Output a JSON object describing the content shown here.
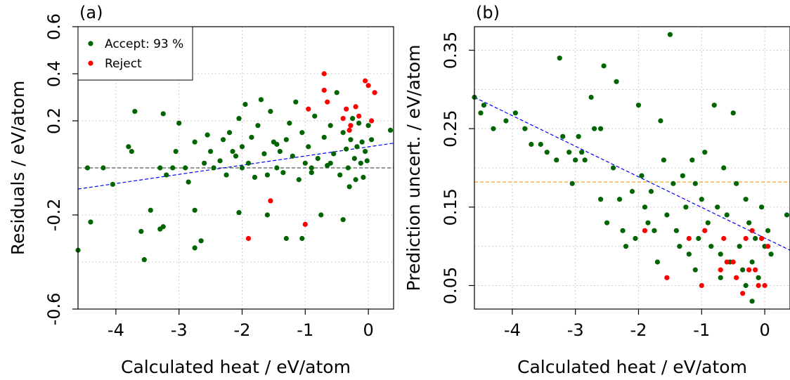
{
  "chart_data": [
    {
      "type": "scatter",
      "panel_tag": "(a)",
      "xlabel": "Calculated heat / eV/atom",
      "ylabel": "Residuals / eV/atom",
      "xlim": [
        -4.6,
        0.4
      ],
      "ylim": [
        -0.6,
        0.6
      ],
      "x_ticks": [
        "-4",
        "-3",
        "-2",
        "-1",
        "0"
      ],
      "y_ticks": [
        "-0.6",
        "-0.2",
        "0.2",
        "0.4",
        "0.6"
      ],
      "y_tick_values": [
        -0.6,
        -0.2,
        0.2,
        0.4,
        0.6
      ],
      "y_grid_values": [
        -0.6,
        -0.4,
        -0.2,
        0,
        0.2,
        0.4,
        0.6
      ],
      "grid": true,
      "legend": {
        "position": "top-left",
        "entries": [
          {
            "label": "Accept: 93 %",
            "color": "#006400"
          },
          {
            "label": "Reject",
            "color": "#ff0000"
          }
        ]
      },
      "reference_lines": [
        {
          "style": "dashed",
          "color": "#555555",
          "from": [
            -4.6,
            0.0
          ],
          "to": [
            0.4,
            0.0
          ]
        },
        {
          "style": "dashed",
          "color": "#0000ff",
          "from": [
            -4.6,
            -0.09
          ],
          "to": [
            0.4,
            0.105
          ]
        }
      ],
      "series": [
        {
          "name": "Accept: 93 %",
          "color": "#006400",
          "points": [
            [
              -4.6,
              -0.35
            ],
            [
              -4.45,
              0.0
            ],
            [
              -4.4,
              -0.23
            ],
            [
              -4.2,
              0.0
            ],
            [
              -4.05,
              -0.07
            ],
            [
              -3.8,
              0.09
            ],
            [
              -3.75,
              0.07
            ],
            [
              -3.7,
              0.24
            ],
            [
              -3.6,
              -0.27
            ],
            [
              -3.55,
              -0.39
            ],
            [
              -3.45,
              -0.18
            ],
            [
              -3.3,
              -0.26
            ],
            [
              -3.25,
              0.23
            ],
            [
              -3.25,
              -0.25
            ],
            [
              -3.2,
              -0.03
            ],
            [
              -3.1,
              0.0
            ],
            [
              -3.05,
              0.07
            ],
            [
              -3.0,
              0.19
            ],
            [
              -2.9,
              0.0
            ],
            [
              -2.85,
              -0.06
            ],
            [
              -2.75,
              0.11
            ],
            [
              -2.75,
              -0.34
            ],
            [
              -2.65,
              -0.31
            ],
            [
              -2.55,
              0.14
            ],
            [
              -2.5,
              0.07
            ],
            [
              -2.45,
              0.0
            ],
            [
              -2.35,
              0.03
            ],
            [
              -2.3,
              0.12
            ],
            [
              -2.25,
              -0.03
            ],
            [
              -2.2,
              0.15
            ],
            [
              -2.15,
              0.07
            ],
            [
              -2.1,
              0.05
            ],
            [
              -2.05,
              0.21
            ],
            [
              -2.0,
              0.09
            ],
            [
              -1.95,
              0.27
            ],
            [
              -1.9,
              0.02
            ],
            [
              -1.85,
              0.13
            ],
            [
              -1.8,
              -0.04
            ],
            [
              -1.75,
              0.18
            ],
            [
              -1.7,
              0.29
            ],
            [
              -1.65,
              0.06
            ],
            [
              -1.6,
              -0.03
            ],
            [
              -1.55,
              0.24
            ],
            [
              -1.5,
              0.11
            ],
            [
              -1.45,
              0.0
            ],
            [
              -1.4,
              0.07
            ],
            [
              -1.35,
              -0.02
            ],
            [
              -1.3,
              0.12
            ],
            [
              -1.25,
              0.19
            ],
            [
              -1.2,
              0.05
            ],
            [
              -1.15,
              0.28
            ],
            [
              -1.1,
              -0.05
            ],
            [
              -1.05,
              0.15
            ],
            [
              -1.0,
              0.02
            ],
            [
              -0.95,
              0.09
            ],
            [
              -0.9,
              -0.02
            ],
            [
              -0.85,
              0.22
            ],
            [
              -0.8,
              0.04
            ],
            [
              -0.75,
              -0.2
            ],
            [
              -0.7,
              0.13
            ],
            [
              -0.65,
              0.01
            ],
            [
              -0.6,
              0.18
            ],
            [
              -0.55,
              0.06
            ],
            [
              -0.5,
              0.32
            ],
            [
              -0.45,
              -0.03
            ],
            [
              -0.4,
              0.15
            ],
            [
              -0.35,
              0.08
            ],
            [
              -0.32,
              0.0
            ],
            [
              -0.3,
              -0.08
            ],
            [
              -0.28,
              0.12
            ],
            [
              -0.25,
              0.21
            ],
            [
              -0.22,
              0.04
            ],
            [
              -0.2,
              -0.05
            ],
            [
              -0.18,
              0.09
            ],
            [
              -0.15,
              0.19
            ],
            [
              -0.12,
              0.02
            ],
            [
              -0.1,
              0.11
            ],
            [
              -0.08,
              -0.04
            ],
            [
              -0.05,
              0.07
            ],
            [
              -0.02,
              0.03
            ],
            [
              0.0,
              0.18
            ],
            [
              0.05,
              0.12
            ],
            [
              0.35,
              0.16
            ],
            [
              -1.6,
              -0.2
            ],
            [
              -1.3,
              -0.3
            ],
            [
              -1.05,
              -0.3
            ],
            [
              -0.4,
              -0.22
            ],
            [
              -2.05,
              -0.19
            ],
            [
              -2.75,
              -0.18
            ],
            [
              -3.3,
              0.0
            ],
            [
              -2.6,
              0.02
            ],
            [
              -2.0,
              0.0
            ],
            [
              -1.45,
              0.1
            ],
            [
              -0.9,
              0.0
            ],
            [
              -0.6,
              0.02
            ]
          ]
        },
        {
          "name": "Reject",
          "color": "#ff0000",
          "points": [
            [
              -1.9,
              -0.3
            ],
            [
              -1.55,
              -0.14
            ],
            [
              -1.0,
              -0.24
            ],
            [
              -0.95,
              0.25
            ],
            [
              -0.7,
              0.4
            ],
            [
              -0.7,
              0.33
            ],
            [
              -0.65,
              0.28
            ],
            [
              -0.4,
              0.21
            ],
            [
              -0.3,
              0.16
            ],
            [
              -0.28,
              0.18
            ],
            [
              -0.2,
              0.26
            ],
            [
              -0.15,
              0.22
            ],
            [
              -0.05,
              0.37
            ],
            [
              0.0,
              0.35
            ],
            [
              0.1,
              0.32
            ],
            [
              -0.35,
              0.25
            ],
            [
              0.05,
              0.2
            ]
          ]
        }
      ]
    },
    {
      "type": "scatter",
      "panel_tag": "(b)",
      "xlabel": "Calculated heat / eV/atom",
      "ylabel": "Prediction uncert. / eV/atom",
      "xlim": [
        -4.6,
        0.4
      ],
      "ylim": [
        0.02,
        0.38
      ],
      "x_ticks": [
        "-4",
        "-3",
        "-2",
        "-1",
        "0"
      ],
      "y_ticks": [
        "0.05",
        "0.15",
        "0.25",
        "0.35"
      ],
      "y_tick_values": [
        0.05,
        0.15,
        0.25,
        0.35
      ],
      "y_grid_values": [
        0.05,
        0.1,
        0.15,
        0.2,
        0.25,
        0.3,
        0.35
      ],
      "grid": true,
      "reference_lines": [
        {
          "style": "dashed",
          "color": "#ffa500",
          "from": [
            -4.6,
            0.182
          ],
          "to": [
            0.4,
            0.182
          ]
        },
        {
          "style": "dashed",
          "color": "#0000ff",
          "from": [
            -4.6,
            0.29
          ],
          "to": [
            0.4,
            0.095
          ]
        }
      ],
      "series": [
        {
          "name": "Accept: 93 %",
          "color": "#006400",
          "points": [
            [
              -4.6,
              0.29
            ],
            [
              -4.5,
              0.27
            ],
            [
              -4.45,
              0.28
            ],
            [
              -4.3,
              0.25
            ],
            [
              -4.1,
              0.26
            ],
            [
              -3.95,
              0.27
            ],
            [
              -3.8,
              0.25
            ],
            [
              -3.7,
              0.23
            ],
            [
              -3.55,
              0.23
            ],
            [
              -3.45,
              0.22
            ],
            [
              -3.3,
              0.21
            ],
            [
              -3.25,
              0.34
            ],
            [
              -3.2,
              0.24
            ],
            [
              -3.1,
              0.22
            ],
            [
              -3.05,
              0.18
            ],
            [
              -2.95,
              0.24
            ],
            [
              -2.9,
              0.22
            ],
            [
              -2.85,
              0.21
            ],
            [
              -2.75,
              0.29
            ],
            [
              -2.7,
              0.25
            ],
            [
              -2.6,
              0.16
            ],
            [
              -2.55,
              0.33
            ],
            [
              -2.5,
              0.13
            ],
            [
              -2.4,
              0.2
            ],
            [
              -2.35,
              0.31
            ],
            [
              -2.3,
              0.16
            ],
            [
              -2.25,
              0.12
            ],
            [
              -2.2,
              0.1
            ],
            [
              -2.1,
              0.17
            ],
            [
              -2.05,
              0.11
            ],
            [
              -2.0,
              0.28
            ],
            [
              -1.95,
              0.19
            ],
            [
              -1.9,
              0.15
            ],
            [
              -1.85,
              0.13
            ],
            [
              -1.8,
              0.17
            ],
            [
              -1.75,
              0.12
            ],
            [
              -1.7,
              0.08
            ],
            [
              -1.65,
              0.26
            ],
            [
              -1.6,
              0.21
            ],
            [
              -1.55,
              0.14
            ],
            [
              -1.5,
              0.37
            ],
            [
              -1.45,
              0.18
            ],
            [
              -1.4,
              0.12
            ],
            [
              -1.35,
              0.1
            ],
            [
              -1.3,
              0.19
            ],
            [
              -1.25,
              0.15
            ],
            [
              -1.2,
              0.09
            ],
            [
              -1.15,
              0.21
            ],
            [
              -1.1,
              0.18
            ],
            [
              -1.05,
              0.11
            ],
            [
              -1.0,
              0.16
            ],
            [
              -0.95,
              0.22
            ],
            [
              -0.9,
              0.13
            ],
            [
              -0.85,
              0.1
            ],
            [
              -0.8,
              0.28
            ],
            [
              -0.75,
              0.15
            ],
            [
              -0.7,
              0.09
            ],
            [
              -0.65,
              0.2
            ],
            [
              -0.6,
              0.14
            ],
            [
              -0.55,
              0.08
            ],
            [
              -0.5,
              0.27
            ],
            [
              -0.45,
              0.18
            ],
            [
              -0.4,
              0.1
            ],
            [
              -0.35,
              0.07
            ],
            [
              -0.3,
              0.16
            ],
            [
              -0.25,
              0.13
            ],
            [
              -0.2,
              0.08
            ],
            [
              -0.15,
              0.11
            ],
            [
              -0.1,
              0.06
            ],
            [
              -0.05,
              0.15
            ],
            [
              0.0,
              0.1
            ],
            [
              0.05,
              0.12
            ],
            [
              0.1,
              0.09
            ],
            [
              0.35,
              0.14
            ],
            [
              -0.2,
              0.03
            ],
            [
              -0.7,
              0.06
            ],
            [
              -1.1,
              0.07
            ],
            [
              -0.3,
              0.05
            ],
            [
              -2.6,
              0.25
            ],
            [
              -3.0,
              0.21
            ]
          ]
        },
        {
          "name": "Reject",
          "color": "#ff0000",
          "points": [
            [
              -1.9,
              0.12
            ],
            [
              -1.55,
              0.06
            ],
            [
              -1.2,
              0.11
            ],
            [
              -1.0,
              0.05
            ],
            [
              -0.95,
              0.12
            ],
            [
              -0.7,
              0.07
            ],
            [
              -0.65,
              0.11
            ],
            [
              -0.6,
              0.08
            ],
            [
              -0.5,
              0.08
            ],
            [
              -0.45,
              0.06
            ],
            [
              -0.35,
              0.04
            ],
            [
              -0.3,
              0.11
            ],
            [
              -0.25,
              0.07
            ],
            [
              -0.2,
              0.12
            ],
            [
              -0.1,
              0.05
            ],
            [
              -0.05,
              0.11
            ],
            [
              0.05,
              0.1
            ],
            [
              0.0,
              0.05
            ],
            [
              -0.15,
              0.07
            ]
          ]
        }
      ]
    }
  ]
}
